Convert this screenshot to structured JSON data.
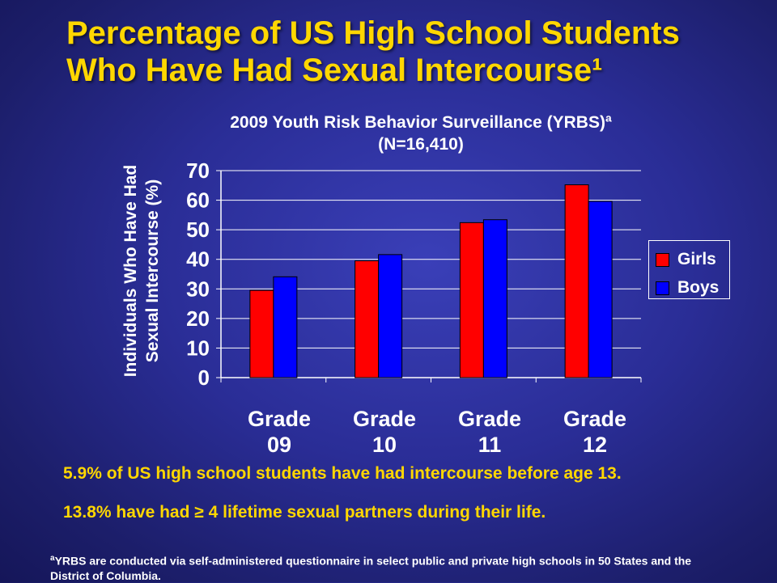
{
  "title": {
    "line1": "Percentage of US High School Students",
    "line2": "Who Have Had Sexual Intercourse¹"
  },
  "chart_data": {
    "type": "bar",
    "title": "2009 Youth Risk Behavior Surveillance (YRBS)ª",
    "subtitle": "(N=16,410)",
    "ylabel_line1": "Individuals Who Have Had",
    "ylabel_line2": "Sexual Intercourse (%)",
    "ylim": [
      0,
      70
    ],
    "yticks": [
      "0",
      "10",
      "20",
      "30",
      "40",
      "50",
      "60",
      "70"
    ],
    "grid": true,
    "legend_position": "right",
    "categories": [
      {
        "line1": "Grade",
        "line2": "09"
      },
      {
        "line1": "Grade",
        "line2": "10"
      },
      {
        "line1": "Grade",
        "line2": "11"
      },
      {
        "line1": "Grade",
        "line2": "12"
      }
    ],
    "series": [
      {
        "name": "Girls",
        "color": "#ff0000",
        "values": [
          29.5,
          39.5,
          52.4,
          65.2
        ]
      },
      {
        "name": "Boys",
        "color": "#0000ff",
        "values": [
          34.1,
          41.6,
          53.4,
          59.6
        ]
      }
    ]
  },
  "notes": {
    "line1": "5.9% of US high school students have had intercourse before age 13.",
    "line2": "13.8% have had ≥ 4 lifetime sexual partners during their life."
  },
  "footnote": {
    "marker": "a",
    "text": "YRBS are conducted via self-administered questionnaire in select public and private high schools in 50 States and the District of Columbia."
  }
}
